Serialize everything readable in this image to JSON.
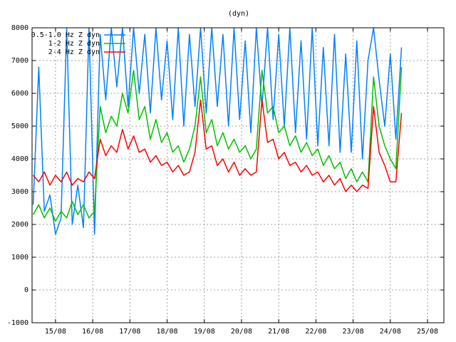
{
  "chart_data": {
    "type": "line",
    "title": "(dyn)",
    "x": [
      14.4,
      14.55,
      14.7,
      14.85,
      15.0,
      15.15,
      15.3,
      15.45,
      15.6,
      15.75,
      15.9,
      16.05,
      16.2,
      16.35,
      16.5,
      16.65,
      16.8,
      16.95,
      17.1,
      17.25,
      17.4,
      17.55,
      17.7,
      17.85,
      18.0,
      18.15,
      18.3,
      18.45,
      18.6,
      18.75,
      18.9,
      19.05,
      19.2,
      19.35,
      19.5,
      19.65,
      19.8,
      19.95,
      20.1,
      20.25,
      20.4,
      20.55,
      20.7,
      20.85,
      21.0,
      21.15,
      21.3,
      21.45,
      21.6,
      21.75,
      21.9,
      22.05,
      22.2,
      22.35,
      22.5,
      22.65,
      22.8,
      22.95,
      23.1,
      23.25,
      23.4,
      23.55,
      23.7,
      23.85,
      24.0,
      24.15,
      24.3
    ],
    "series": [
      {
        "name": "0.5-1.0 Hz Z dyn",
        "color": "#0080ff",
        "values": [
          2600,
          6800,
          2400,
          2900,
          1700,
          2200,
          8000,
          2000,
          3200,
          1900,
          8000,
          1700,
          7800,
          5800,
          8000,
          6200,
          8000,
          5600,
          8000,
          6000,
          7800,
          5400,
          8000,
          5800,
          7600,
          5200,
          8000,
          5000,
          7800,
          5600,
          8000,
          5400,
          8000,
          5600,
          7800,
          5000,
          8000,
          5200,
          7600,
          4800,
          8000,
          5600,
          8000,
          5200,
          7800,
          5000,
          8000,
          4800,
          7600,
          4600,
          8000,
          4400,
          7400,
          4400,
          7800,
          4200,
          7200,
          4200,
          7600,
          4000,
          7000,
          8000,
          6400,
          5000,
          7200,
          4600,
          7400
        ]
      },
      {
        "name": "1-2 Hz Z dyn",
        "color": "#00c000",
        "values": [
          2300,
          2600,
          2200,
          2500,
          2100,
          2400,
          2200,
          2700,
          2300,
          2600,
          2200,
          2400,
          5600,
          4800,
          5300,
          5000,
          6000,
          5400,
          6700,
          5200,
          5600,
          4600,
          5200,
          4500,
          4800,
          4200,
          4400,
          3900,
          4300,
          5000,
          6500,
          4800,
          5200,
          4400,
          4800,
          4300,
          4600,
          4200,
          4400,
          4000,
          4300,
          6700,
          5400,
          5600,
          4800,
          5000,
          4400,
          4700,
          4200,
          4500,
          4100,
          4300,
          3800,
          4100,
          3700,
          3900,
          3400,
          3700,
          3300,
          3600,
          3300,
          6500,
          5000,
          4400,
          4000,
          3700,
          6800
        ]
      },
      {
        "name": "2-4 Hz Z dyn",
        "color": "#ff0000",
        "values": [
          3500,
          3300,
          3600,
          3200,
          3500,
          3300,
          3600,
          3200,
          3400,
          3300,
          3600,
          3400,
          4600,
          4100,
          4400,
          4200,
          4900,
          4300,
          4700,
          4200,
          4300,
          3900,
          4100,
          3800,
          3900,
          3600,
          3800,
          3500,
          3600,
          4200,
          5800,
          4300,
          4400,
          3800,
          4000,
          3600,
          3900,
          3500,
          3700,
          3500,
          3600,
          5800,
          4500,
          4600,
          4000,
          4200,
          3800,
          3900,
          3600,
          3800,
          3500,
          3600,
          3300,
          3500,
          3200,
          3400,
          3000,
          3200,
          3000,
          3200,
          3100,
          5600,
          4200,
          3800,
          3300,
          3300,
          5400
        ]
      }
    ],
    "xlim": [
      14.37,
      25.44
    ],
    "xticks": [
      {
        "value": 15,
        "label": "15/08"
      },
      {
        "value": 16,
        "label": "16/08"
      },
      {
        "value": 17,
        "label": "17/08"
      },
      {
        "value": 18,
        "label": "18/08"
      },
      {
        "value": 19,
        "label": "19/08"
      },
      {
        "value": 20,
        "label": "20/08"
      },
      {
        "value": 21,
        "label": "21/08"
      },
      {
        "value": 22,
        "label": "22/08"
      },
      {
        "value": 23,
        "label": "23/08"
      },
      {
        "value": 24,
        "label": "24/08"
      },
      {
        "value": 25,
        "label": "25/08"
      }
    ],
    "ylim": [
      -1000,
      8000
    ],
    "yticks": [
      -1000,
      0,
      1000,
      2000,
      3000,
      4000,
      5000,
      6000,
      7000,
      8000
    ],
    "grid": true,
    "legend": "top-left"
  }
}
